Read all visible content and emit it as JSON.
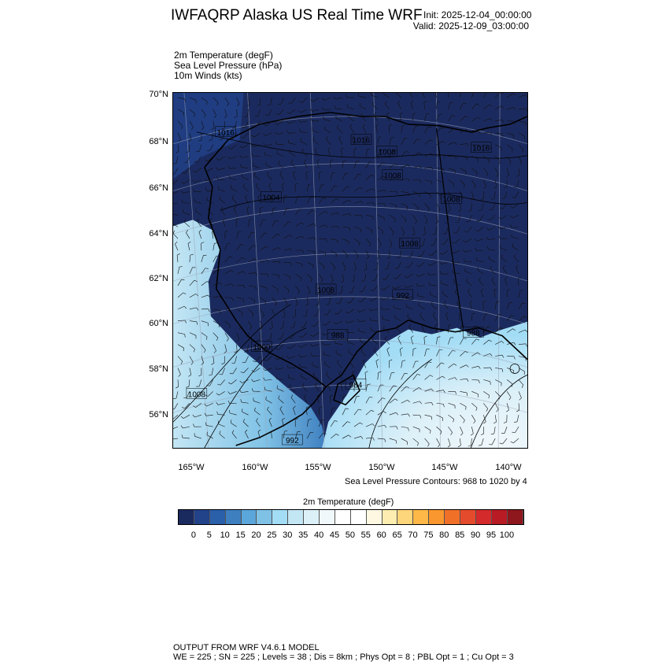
{
  "header": {
    "title": "IWFAQRP Alaska US Real Time WRF",
    "init": "Init: 2025-12-04_00:00:00",
    "valid": "Valid: 2025-12-09_03:00:00"
  },
  "variables": [
    "2m Temperature   (degF)",
    "Sea Level Pressure   (hPa)",
    "10m Winds   (kts)"
  ],
  "map": {
    "lat_labels": [
      "70°N",
      "68°N",
      "66°N",
      "64°N",
      "62°N",
      "60°N",
      "58°N",
      "56°N"
    ],
    "lon_labels": [
      "165°W",
      "160°W",
      "155°W",
      "150°W",
      "145°W",
      "140°W"
    ],
    "contour_labels": [
      "1016",
      "1016",
      "1008",
      "1008",
      "1016",
      "1004",
      "1008",
      "1008",
      "1008",
      "992",
      "1000",
      "988",
      "1008",
      "992",
      "984",
      "988"
    ],
    "land_color": "#1b2a5e",
    "ocean_colors": [
      "#80c2e6",
      "#c3e6f4",
      "#dcf0f8"
    ]
  },
  "slp_note": "Sea Level Pressure Contours: 968 to 1020 by 4",
  "colorbar": {
    "title": "2m Temperature  (degF)",
    "labels": [
      "0",
      "5",
      "10",
      "15",
      "20",
      "25",
      "30",
      "35",
      "40",
      "45",
      "50",
      "55",
      "60",
      "65",
      "70",
      "75",
      "80",
      "85",
      "90",
      "95",
      "100"
    ],
    "colors": [
      "#1b2a5e",
      "#22428a",
      "#2a5faa",
      "#3e7fc0",
      "#5ba6da",
      "#80c2e6",
      "#a2dcf5",
      "#c3e6f4",
      "#dcf0f8",
      "#f1f8fc",
      "#ffffff",
      "#ffffff",
      "#fef8e2",
      "#fdedb0",
      "#fdd57a",
      "#fdb847",
      "#fa972e",
      "#f07028",
      "#e44b2c",
      "#d42a2b",
      "#b81b24",
      "#8e161d"
    ]
  },
  "footer": {
    "line1": "OUTPUT FROM WRF V4.6.1 MODEL",
    "line2": "WE = 225 ; SN = 225 ; Levels = 38 ; Dis = 8km ; Phys Opt = 8 ; PBL Opt = 1 ; Cu Opt = 3"
  }
}
